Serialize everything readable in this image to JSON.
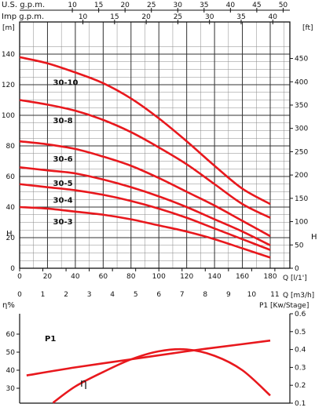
{
  "chart_data": [
    {
      "type": "line",
      "title": "",
      "top_axes": [
        {
          "label": "U.S. g.p.m.",
          "ticks": [
            "10",
            "15",
            "20",
            "25",
            "30",
            "35",
            "40",
            "45",
            "50"
          ]
        },
        {
          "label": "Imp g.p.m.",
          "ticks": [
            "10",
            "15",
            "20",
            "25",
            "30",
            "35",
            "40"
          ]
        }
      ],
      "xlabel": "Q [l/1']",
      "xlabel2": "Q [m3/h]",
      "x_ticks": [
        "0",
        "20",
        "40",
        "60",
        "80",
        "100",
        "120",
        "140",
        "160",
        "180"
      ],
      "x2_ticks": [
        "0",
        "1",
        "2",
        "3",
        "4",
        "5",
        "6",
        "7",
        "8",
        "9",
        "10",
        "11"
      ],
      "ylabel_left": "H",
      "ylabel_left_unit": "[m]",
      "ylabel_right": "H",
      "ylabel_right_unit": "[ft]",
      "y_ticks_left": [
        "0",
        "20",
        "40",
        "60",
        "80",
        "100",
        "120",
        "140"
      ],
      "y_ticks_right": [
        "0",
        "50",
        "100",
        "150",
        "200",
        "250",
        "300",
        "350",
        "400",
        "450"
      ],
      "xlim": [
        0,
        190
      ],
      "ylim": [
        0,
        146
      ],
      "grid": true,
      "series": [
        {
          "name": "30-10",
          "x": [
            0,
            20,
            40,
            60,
            80,
            100,
            120,
            140,
            160,
            180
          ],
          "y": [
            138,
            134,
            128,
            121,
            111,
            98,
            83,
            67,
            52,
            42
          ]
        },
        {
          "name": "30-8",
          "x": [
            0,
            20,
            40,
            60,
            80,
            100,
            120,
            140,
            160,
            180
          ],
          "y": [
            110,
            107,
            103,
            97,
            89,
            79,
            68,
            55,
            42,
            33
          ]
        },
        {
          "name": "30-6",
          "x": [
            0,
            20,
            40,
            60,
            80,
            100,
            120,
            140,
            160,
            180
          ],
          "y": [
            83,
            81,
            78,
            73,
            67,
            59,
            50,
            41,
            31,
            21
          ]
        },
        {
          "name": "30-5",
          "x": [
            0,
            20,
            40,
            60,
            80,
            100,
            120,
            140,
            160,
            180
          ],
          "y": [
            66,
            64,
            62,
            58,
            53,
            47,
            40,
            32,
            24,
            15
          ]
        },
        {
          "name": "30-4",
          "x": [
            0,
            20,
            40,
            60,
            80,
            100,
            120,
            140,
            160,
            180
          ],
          "y": [
            55,
            53,
            51,
            48,
            44,
            39,
            33,
            26,
            19,
            12
          ]
        },
        {
          "name": "30-3",
          "x": [
            0,
            20,
            40,
            60,
            80,
            100,
            120,
            140,
            160,
            180
          ],
          "y": [
            40,
            39,
            37,
            35,
            32,
            28,
            24,
            19,
            13,
            7
          ]
        }
      ],
      "line_color": "#e8181d"
    },
    {
      "type": "line",
      "title": "",
      "ylabel_left": "η%",
      "ylabel_right": "P1 [Kw/Stage]",
      "y_ticks_left": [
        "20",
        "30",
        "40",
        "50",
        "60"
      ],
      "y_ticks_right": [
        "0.1",
        "0.2",
        "0.3",
        "0.4",
        "0.5",
        "0.6"
      ],
      "xlim": [
        0,
        190
      ],
      "ylim_left": [
        20,
        64
      ],
      "ylim_right": [
        0.1,
        0.6
      ],
      "grid": false,
      "series": [
        {
          "name": "P1",
          "axis": "right",
          "x": [
            5,
            40,
            80,
            120,
            160,
            180
          ],
          "y": [
            0.255,
            0.3,
            0.345,
            0.39,
            0.43,
            0.45
          ]
        },
        {
          "name": "η",
          "axis": "left",
          "x": [
            24,
            40,
            60,
            80,
            100,
            120,
            140,
            160,
            180
          ],
          "y": [
            22,
            31,
            39,
            46,
            50.5,
            51.5,
            48,
            40,
            26
          ]
        }
      ],
      "line_color": "#e8181d"
    }
  ]
}
